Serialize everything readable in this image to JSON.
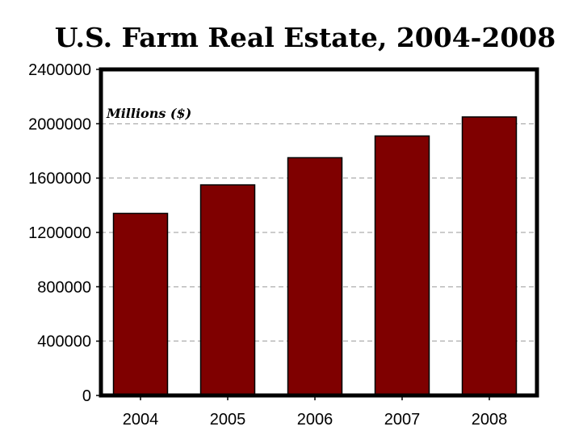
{
  "chart_data": {
    "type": "bar",
    "title": "U.S. Farm Real Estate, 2004-2008",
    "ylabel": "Millions ($)",
    "xlabel": "",
    "categories": [
      "2004",
      "2005",
      "2006",
      "2007",
      "2008"
    ],
    "values": [
      1340000,
      1550000,
      1750000,
      1910000,
      2050000
    ],
    "ylim": [
      0,
      2400000
    ],
    "yticks": [
      "0",
      "400000",
      "800000",
      "1200000",
      "1600000",
      "2000000",
      "2400000"
    ],
    "grid": true,
    "bar_color": "#7f0000"
  }
}
